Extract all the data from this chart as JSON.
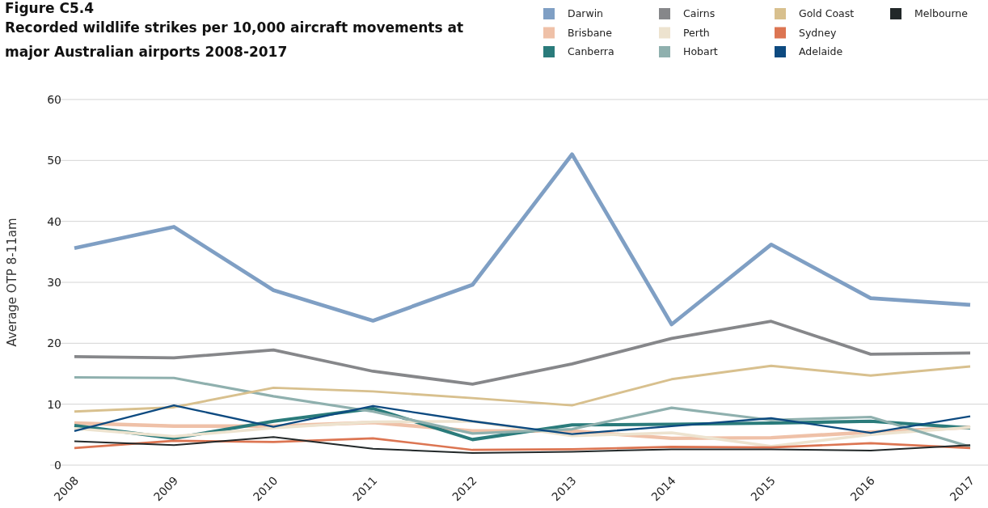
{
  "chart_data": {
    "type": "line",
    "title": "Figure C5.4",
    "subtitle": "Recorded wildlife strikes per 10,000 aircraft movements at major Australian airports 2008-2017",
    "ylabel": "Average OTP 8-11am",
    "categories": [
      "2008",
      "2009",
      "2010",
      "2011",
      "2012",
      "2013",
      "2014",
      "2015",
      "2016",
      "2017"
    ],
    "ylim": [
      0,
      60
    ],
    "yticks": [
      0,
      10,
      20,
      30,
      40,
      50,
      60
    ],
    "grid": "y",
    "legend": "top right",
    "marker": "none",
    "line_style": "solid",
    "series": [
      {
        "name": "Darwin",
        "color": "#7f9fc4",
        "values": [
          35.6,
          39.1,
          28.7,
          23.7,
          29.6,
          51.0,
          23.1,
          36.2,
          27.4,
          26.3
        ]
      },
      {
        "name": "Brisbane",
        "color": "#efc1a8",
        "values": [
          6.9,
          6.4,
          6.4,
          7.0,
          5.6,
          5.6,
          4.4,
          4.5,
          5.4,
          6.2
        ]
      },
      {
        "name": "Canberra",
        "color": "#2a7b7b",
        "values": [
          6.5,
          4.4,
          7.2,
          9.3,
          4.2,
          6.6,
          6.7,
          6.9,
          7.2,
          6.1
        ]
      },
      {
        "name": "Cairns",
        "color": "#86878a",
        "values": [
          17.8,
          17.6,
          18.9,
          15.4,
          13.3,
          16.6,
          20.8,
          23.6,
          18.2,
          18.4
        ]
      },
      {
        "name": "Perth",
        "color": "#ede3cf",
        "values": [
          6.0,
          4.7,
          6.1,
          7.1,
          7.2,
          4.8,
          5.3,
          3.1,
          5.0,
          6.2
        ]
      },
      {
        "name": "Hobart",
        "color": "#8fb0ae",
        "values": [
          14.4,
          14.3,
          11.3,
          8.8,
          5.2,
          5.9,
          9.4,
          7.4,
          7.9,
          3.0
        ]
      },
      {
        "name": "Gold Coast",
        "color": "#d8c08e",
        "values": [
          8.8,
          9.5,
          12.7,
          12.1,
          11.0,
          9.8,
          14.1,
          16.3,
          14.7,
          16.2
        ]
      },
      {
        "name": "Sydney",
        "color": "#dc7552",
        "values": [
          2.8,
          4.0,
          3.8,
          4.4,
          2.5,
          2.6,
          3.0,
          2.9,
          3.6,
          2.8
        ]
      },
      {
        "name": "Adelaide",
        "color": "#0d4a80",
        "values": [
          5.6,
          9.8,
          6.3,
          9.7,
          7.2,
          5.1,
          6.4,
          7.7,
          5.3,
          8.0
        ]
      },
      {
        "name": "Melbourne",
        "color": "#222829",
        "values": [
          3.9,
          3.3,
          4.6,
          2.7,
          2.0,
          2.2,
          2.6,
          2.6,
          2.4,
          3.3
        ]
      }
    ]
  }
}
